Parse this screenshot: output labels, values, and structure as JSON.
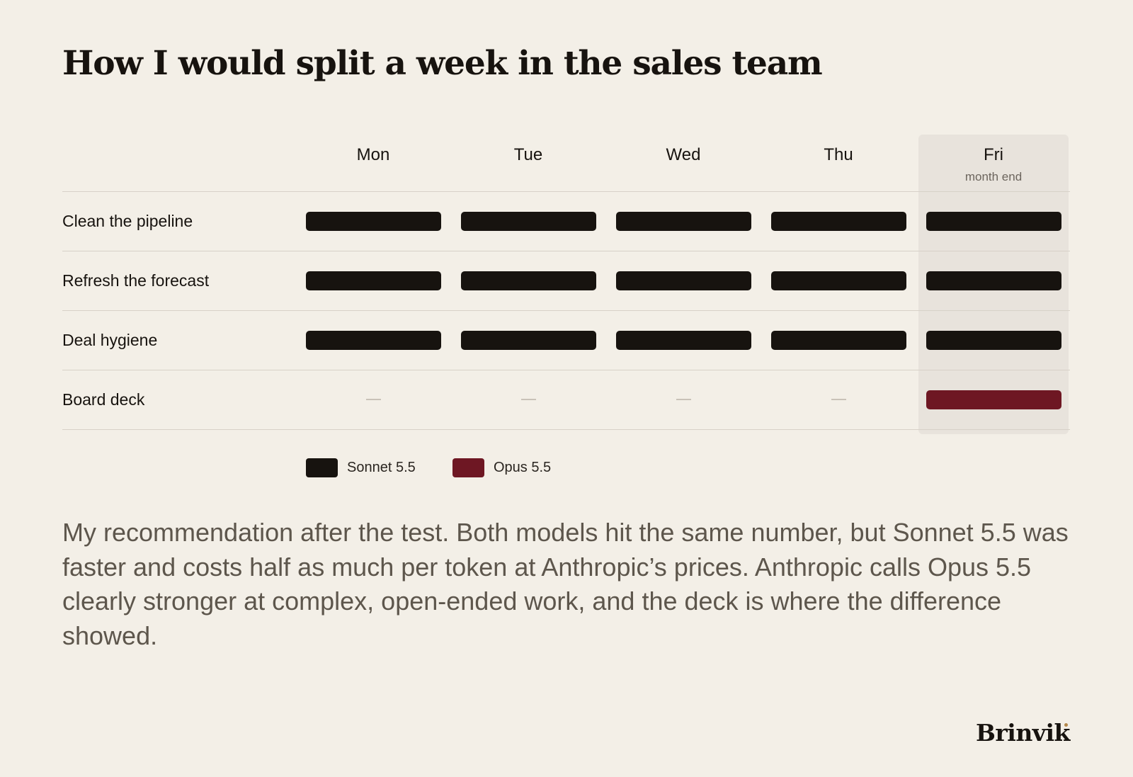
{
  "title": "How I would split a week in the sales team",
  "days": [
    {
      "label": "Mon",
      "sublabel": ""
    },
    {
      "label": "Tue",
      "sublabel": ""
    },
    {
      "label": "Wed",
      "sublabel": ""
    },
    {
      "label": "Thu",
      "sublabel": ""
    },
    {
      "label": "Fri",
      "sublabel": "month end"
    }
  ],
  "tasks": [
    {
      "label": "Clean the pipeline",
      "assignments": [
        "sonnet",
        "sonnet",
        "sonnet",
        "sonnet",
        "sonnet"
      ]
    },
    {
      "label": "Refresh the forecast",
      "assignments": [
        "sonnet",
        "sonnet",
        "sonnet",
        "sonnet",
        "sonnet"
      ]
    },
    {
      "label": "Deal hygiene",
      "assignments": [
        "sonnet",
        "sonnet",
        "sonnet",
        "sonnet",
        "sonnet"
      ]
    },
    {
      "label": "Board deck",
      "assignments": [
        "none",
        "none",
        "none",
        "none",
        "opus"
      ]
    }
  ],
  "legend": [
    {
      "key": "sonnet",
      "label": "Sonnet 5.5",
      "color": "#17130f"
    },
    {
      "key": "opus",
      "label": "Opus 5.5",
      "color": "#6e1723"
    }
  ],
  "colors": {
    "background": "#f3efe7",
    "highlight_band": "#e8e3dc",
    "empty_dash": "#c9c2b8"
  },
  "body_text": "My recommendation after the test. Both models hit the same number, but Sonnet 5.5 was faster and costs half as much per token at Anthropic’s prices. Anthropic calls Opus 5.5 clearly stronger at complex, open-ended work, and the deck is where the difference showed.",
  "brand": "Brinvik"
}
